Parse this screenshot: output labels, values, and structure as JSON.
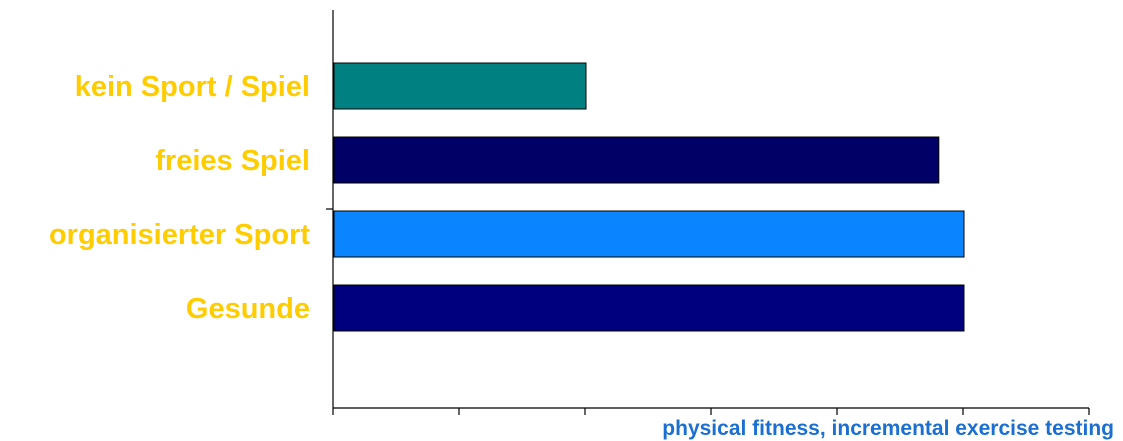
{
  "chart_data": {
    "type": "bar",
    "orientation": "horizontal",
    "categories": [
      "kein Sport / Spiel",
      "freies Spiel",
      "organisierter Sport",
      "Gesunde"
    ],
    "values": [
      2,
      4.8,
      5,
      5
    ],
    "xlim": [
      0,
      6
    ],
    "xlabel": "physical fitness, incremental exercise testing",
    "ylabel": "",
    "title": "",
    "grid": false,
    "bar_colors": [
      "#008080",
      "#000066",
      "#0a84ff",
      "#00007f"
    ],
    "label_color": "#ffcc00",
    "xlabel_color": "#1a6fd1"
  }
}
